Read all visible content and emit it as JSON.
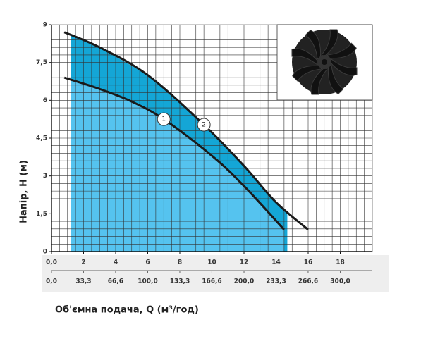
{
  "chart_data": {
    "type": "line",
    "x_label": "Об'ємна подача, Q (м³/год)",
    "y_label": "Напір, Н (м)",
    "xlim": [
      0,
      20
    ],
    "xticks": [
      {
        "value": 0,
        "label": "0,0"
      },
      2,
      4,
      6,
      8,
      10,
      12,
      14,
      16,
      18
    ],
    "x2lim": [
      0,
      333.3
    ],
    "x2ticks": [
      {
        "value": 0,
        "label": "0,0"
      },
      {
        "value": 33.3,
        "label": "33,3"
      },
      {
        "value": 66.6,
        "label": "66,6"
      },
      {
        "value": 100,
        "label": "100,0"
      },
      {
        "value": 133.3,
        "label": "133,3"
      },
      {
        "value": 166.6,
        "label": "166,6"
      },
      {
        "value": 200,
        "label": "200,0"
      },
      {
        "value": 233.3,
        "label": "233,3"
      },
      {
        "value": 266.6,
        "label": "266,6"
      },
      {
        "value": 300,
        "label": "300,0"
      }
    ],
    "ylim": [
      0,
      9
    ],
    "yticks": [
      0,
      {
        "value": 1.5,
        "label": "1,5"
      },
      3,
      {
        "value": 4.5,
        "label": "4,5"
      },
      6,
      {
        "value": 7.5,
        "label": "7,5"
      },
      9
    ],
    "grid": true,
    "grid_step": [
      0.5,
      0.3
    ],
    "shaded_x": [
      1.2,
      14.7
    ],
    "series": [
      {
        "name": "1",
        "color": "#1a1a1a",
        "fill": "#55c3ef",
        "x": [
          0.8,
          3,
          5,
          7,
          10,
          12,
          14.5
        ],
        "values": [
          6.9,
          6.45,
          5.95,
          5.25,
          3.8,
          2.6,
          0.87
        ]
      },
      {
        "name": "2",
        "color": "#1a1a1a",
        "fill": "#14a6d6",
        "x": [
          0.8,
          3,
          6,
          9.5,
          12,
          14,
          16
        ],
        "values": [
          8.7,
          8.1,
          7.0,
          5.03,
          3.4,
          1.95,
          0.87
        ]
      }
    ]
  }
}
